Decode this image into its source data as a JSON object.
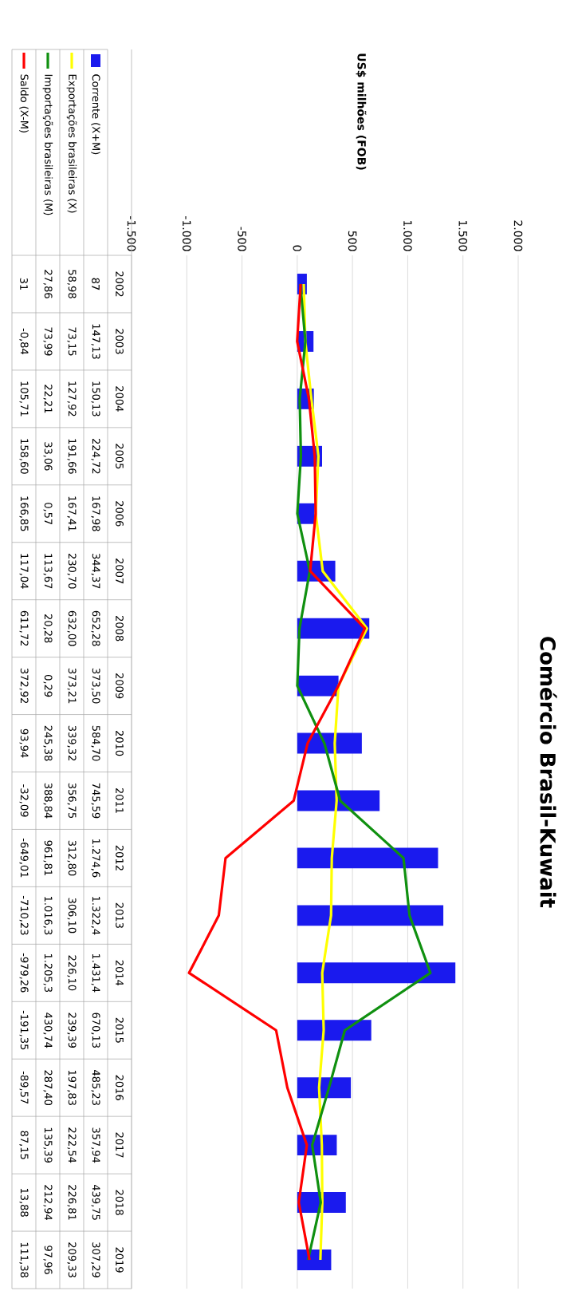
{
  "chart_data": {
    "type": "bar",
    "title": "Comércio Brasil-Kuwait",
    "annotations": [
      "US$ milhões (FOB)"
    ],
    "orientation": "horizontal",
    "categories": [
      "2002",
      "2003",
      "2004",
      "2005",
      "2006",
      "2007",
      "2008",
      "2009",
      "2010",
      "2011",
      "2012",
      "2013",
      "2014",
      "2015",
      "2016",
      "2017",
      "2018",
      "2019"
    ],
    "series": [
      {
        "name": "Corrente (X+M)",
        "color": "#1a1aee",
        "values": [
          87,
          147.13,
          150.13,
          224.72,
          167.98,
          344.37,
          652.28,
          373.5,
          584.7,
          745.59,
          1274.6,
          1322.4,
          1431.4,
          670.13,
          485.23,
          357.94,
          439.75,
          307.29
        ],
        "value_labels": [
          "87",
          "147,13",
          "150,13",
          "224,72",
          "167,98",
          "344,37",
          "652,28",
          "373,50",
          "584,70",
          "745,59",
          "1.274,6",
          "1.322,4",
          "1.431,4",
          "670,13",
          "485,23",
          "357,94",
          "439,75",
          "307,29"
        ]
      },
      {
        "name": "Exportações brasileiras (X)",
        "type": "line",
        "color": "#ffff00",
        "values": [
          58.98,
          73.15,
          127.92,
          191.66,
          167.41,
          230.7,
          632.0,
          373.21,
          339.32,
          356.75,
          312.8,
          306.1,
          226.1,
          239.39,
          197.83,
          222.54,
          226.81,
          209.33
        ],
        "value_labels": [
          "58,98",
          "73,15",
          "127,92",
          "191,66",
          "167,41",
          "230,70",
          "632,00",
          "373,21",
          "339,32",
          "356,75",
          "312,80",
          "306,10",
          "226,10",
          "239,39",
          "197,83",
          "222,54",
          "226,81",
          "209,33"
        ]
      },
      {
        "name": "Importações brasileiras (M)",
        "type": "line",
        "color": "#109010",
        "values": [
          27.86,
          73.99,
          22.21,
          33.06,
          0.57,
          113.67,
          20.28,
          0.29,
          245.38,
          388.84,
          961.81,
          1016.3,
          1205.3,
          430.74,
          287.4,
          135.39,
          212.94,
          97.96
        ],
        "value_labels": [
          "27,86",
          "73,99",
          "22,21",
          "33,06",
          "0,57",
          "113,67",
          "20,28",
          "0,29",
          "245,38",
          "388,84",
          "961,81",
          "1.016,3",
          "1.205,3",
          "430,74",
          "287,40",
          "135,39",
          "212,94",
          "97,96"
        ]
      },
      {
        "name": "Saldo (X-M)",
        "type": "line",
        "color": "#ff0000",
        "values": [
          31,
          -0.84,
          105.71,
          158.6,
          166.85,
          117.04,
          611.72,
          372.92,
          93.94,
          -32.09,
          -649.01,
          -710.23,
          -979.26,
          -191.35,
          -89.57,
          87.15,
          13.88,
          111.38
        ],
        "value_labels": [
          "31",
          "-0,84",
          "105,71",
          "158,60",
          "166,85",
          "117,04",
          "611,72",
          "372,92",
          "93,94",
          "-32,09",
          "-649,01",
          "-710,23",
          "-979,26",
          "-191,35",
          "-89,57",
          "87,15",
          "13,88",
          "111,38"
        ]
      }
    ],
    "xlim": [
      -1500,
      2000
    ],
    "xticks": [
      {
        "value": -1500,
        "label": "-1.500"
      },
      {
        "value": -1000,
        "label": "-1.000"
      },
      {
        "value": -500,
        "label": "-500"
      },
      {
        "value": 0,
        "label": "0"
      },
      {
        "value": 500,
        "label": "500"
      },
      {
        "value": 1000,
        "label": "1.000"
      },
      {
        "value": 1500,
        "label": "1.500"
      },
      {
        "value": 2000,
        "label": "2.000"
      }
    ],
    "grid": "x",
    "legend": "top left"
  }
}
